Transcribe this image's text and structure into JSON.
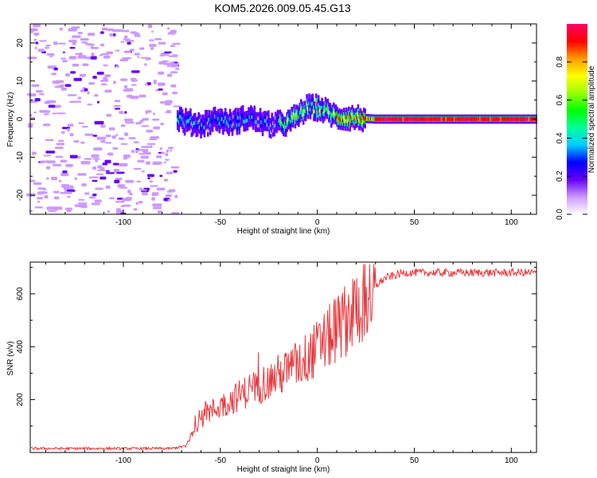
{
  "title": "KOM5.2026.009.05.45.G13",
  "chart_data": [
    {
      "type": "heatmap",
      "title": "",
      "xlabel": "Height of straight line (km)",
      "ylabel": "Frequency (Hz)",
      "xlim": [
        -148,
        113
      ],
      "ylim": [
        -25,
        25
      ],
      "xticks": [
        -100,
        -50,
        0,
        50,
        100
      ],
      "yticks": [
        -20,
        -10,
        0,
        10,
        20
      ],
      "colorbar": {
        "label": "Normalized spectral amplitude",
        "range": [
          0,
          1
        ],
        "ticks": [
          0.0,
          0.2,
          0.4,
          0.6,
          0.8
        ],
        "colors": [
          "#ffffff",
          "#cc99ff",
          "#6600ff",
          "#0000ff",
          "#00ccff",
          "#00ff99",
          "#00ff00",
          "#99ff00",
          "#ffff00",
          "#ff9900",
          "#ff0000",
          "#ff0066"
        ]
      },
      "ridge": [
        {
          "x": -70,
          "f": -0.5
        },
        {
          "x": -60,
          "f": -1.5
        },
        {
          "x": -52,
          "f": 0
        },
        {
          "x": -45,
          "f": -1
        },
        {
          "x": -35,
          "f": 0.5
        },
        {
          "x": -25,
          "f": -1.5
        },
        {
          "x": -15,
          "f": -1
        },
        {
          "x": -10,
          "f": 1
        },
        {
          "x": -5,
          "f": 3
        },
        {
          "x": 0,
          "f": 3
        },
        {
          "x": 5,
          "f": 2
        },
        {
          "x": 10,
          "f": 0.5
        },
        {
          "x": 20,
          "f": 0.3
        },
        {
          "x": 30,
          "f": 0
        },
        {
          "x": 113,
          "f": 0
        }
      ]
    },
    {
      "type": "line",
      "title": "",
      "xlabel": "Height of straight line (km)",
      "ylabel": "SNR (v/v)",
      "xlim": [
        -148,
        113
      ],
      "ylim": [
        0,
        720
      ],
      "xticks": [
        -100,
        -50,
        0,
        50,
        100
      ],
      "yticks": [
        200,
        400,
        600
      ],
      "series": [
        {
          "name": "SNR",
          "color": "#e8383d",
          "envelope": [
            {
              "x": -148,
              "y": 15
            },
            {
              "x": -75,
              "y": 15
            },
            {
              "x": -68,
              "y": 25
            },
            {
              "x": -62,
              "y": 110
            },
            {
              "x": -55,
              "y": 160
            },
            {
              "x": -45,
              "y": 200
            },
            {
              "x": -35,
              "y": 245
            },
            {
              "x": -25,
              "y": 280
            },
            {
              "x": -15,
              "y": 320
            },
            {
              "x": -5,
              "y": 370
            },
            {
              "x": 5,
              "y": 440
            },
            {
              "x": 15,
              "y": 520
            },
            {
              "x": 25,
              "y": 600
            },
            {
              "x": 35,
              "y": 660
            },
            {
              "x": 45,
              "y": 680
            },
            {
              "x": 113,
              "y": 680
            }
          ]
        }
      ]
    }
  ]
}
